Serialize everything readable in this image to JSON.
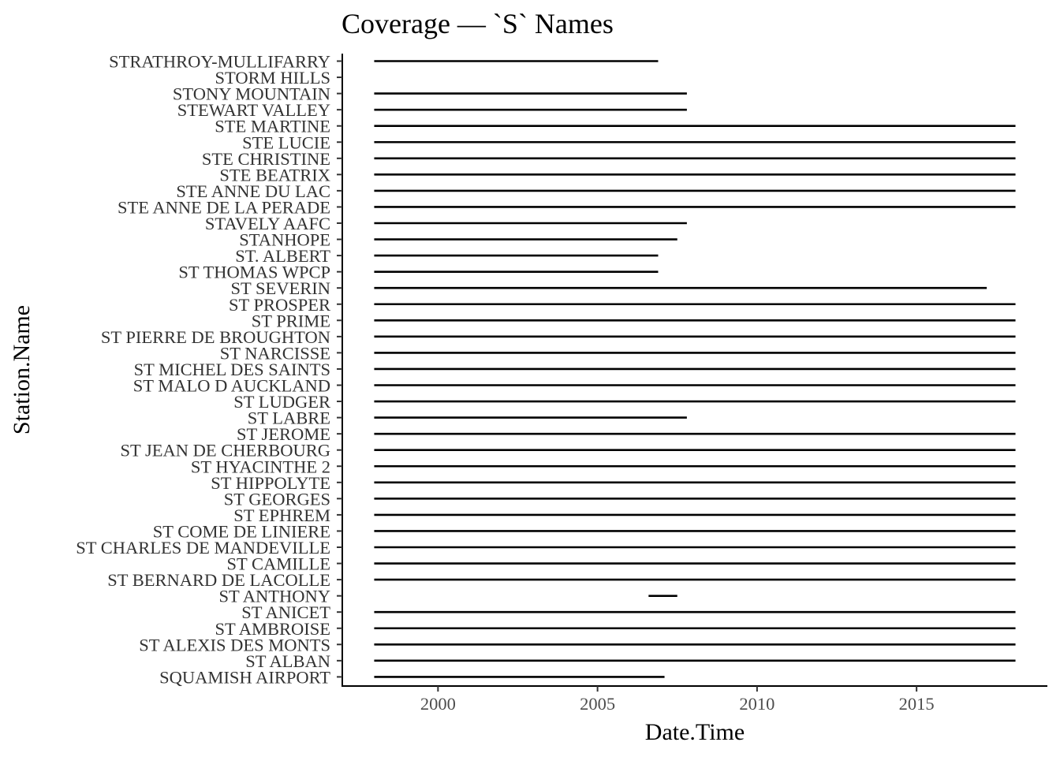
{
  "chart_data": {
    "type": "range",
    "title": "Coverage — `S` Names",
    "xlabel": "Date.Time",
    "ylabel": "Station.Name",
    "xlim": [
      1997.0,
      2019.1
    ],
    "x_ticks": [
      2000,
      2005,
      2010,
      2015
    ],
    "grid": false,
    "legend": "none",
    "line_color": "#000000",
    "stations": [
      {
        "name": "STRATHROY-MULLIFARRY",
        "start": 1998.0,
        "end": 2006.9
      },
      {
        "name": "STORM HILLS",
        "start": null,
        "end": null
      },
      {
        "name": "STONY MOUNTAIN",
        "start": 1998.0,
        "end": 2007.8
      },
      {
        "name": "STEWART VALLEY",
        "start": 1998.0,
        "end": 2007.8
      },
      {
        "name": "STE MARTINE",
        "start": 1998.0,
        "end": 2018.1
      },
      {
        "name": "STE LUCIE",
        "start": 1998.0,
        "end": 2018.1
      },
      {
        "name": "STE CHRISTINE",
        "start": 1998.0,
        "end": 2018.1
      },
      {
        "name": "STE BEATRIX",
        "start": 1998.0,
        "end": 2018.1
      },
      {
        "name": "STE ANNE DU LAC",
        "start": 1998.0,
        "end": 2018.1
      },
      {
        "name": "STE ANNE DE LA PERADE",
        "start": 1998.0,
        "end": 2018.1
      },
      {
        "name": "STAVELY AAFC",
        "start": 1998.0,
        "end": 2007.8
      },
      {
        "name": "STANHOPE",
        "start": 1998.0,
        "end": 2007.5
      },
      {
        "name": "ST. ALBERT",
        "start": 1998.0,
        "end": 2006.9
      },
      {
        "name": "ST THOMAS WPCP",
        "start": 1998.0,
        "end": 2006.9
      },
      {
        "name": "ST SEVERIN",
        "start": 1998.0,
        "end": 2017.2
      },
      {
        "name": "ST PROSPER",
        "start": 1998.0,
        "end": 2018.1
      },
      {
        "name": "ST PRIME",
        "start": 1998.0,
        "end": 2018.1
      },
      {
        "name": "ST PIERRE DE BROUGHTON",
        "start": 1998.0,
        "end": 2018.1
      },
      {
        "name": "ST NARCISSE",
        "start": 1998.0,
        "end": 2018.1
      },
      {
        "name": "ST MICHEL DES SAINTS",
        "start": 1998.0,
        "end": 2018.1
      },
      {
        "name": "ST MALO D AUCKLAND",
        "start": 1998.0,
        "end": 2018.1
      },
      {
        "name": "ST LUDGER",
        "start": 1998.0,
        "end": 2018.1
      },
      {
        "name": "ST LABRE",
        "start": 1998.0,
        "end": 2007.8
      },
      {
        "name": "ST JEROME",
        "start": 1998.0,
        "end": 2018.1
      },
      {
        "name": "ST JEAN DE CHERBOURG",
        "start": 1998.0,
        "end": 2018.1
      },
      {
        "name": "ST HYACINTHE 2",
        "start": 1998.0,
        "end": 2018.1
      },
      {
        "name": "ST HIPPOLYTE",
        "start": 1998.0,
        "end": 2018.1
      },
      {
        "name": "ST GEORGES",
        "start": 1998.0,
        "end": 2018.1
      },
      {
        "name": "ST EPHREM",
        "start": 1998.0,
        "end": 2018.1
      },
      {
        "name": "ST COME DE LINIERE",
        "start": 1998.0,
        "end": 2018.1
      },
      {
        "name": "ST CHARLES DE MANDEVILLE",
        "start": 1998.0,
        "end": 2018.1
      },
      {
        "name": "ST CAMILLE",
        "start": 1998.0,
        "end": 2018.1
      },
      {
        "name": "ST BERNARD DE LACOLLE",
        "start": 1998.0,
        "end": 2018.1
      },
      {
        "name": "ST ANTHONY",
        "start": 2006.6,
        "end": 2007.5
      },
      {
        "name": "ST ANICET",
        "start": 1998.0,
        "end": 2018.1
      },
      {
        "name": "ST AMBROISE",
        "start": 1998.0,
        "end": 2018.1
      },
      {
        "name": "ST ALEXIS DES MONTS",
        "start": 1998.0,
        "end": 2018.1
      },
      {
        "name": "ST ALBAN",
        "start": 1998.0,
        "end": 2018.1
      },
      {
        "name": "SQUAMISH AIRPORT",
        "start": 1998.0,
        "end": 2007.1
      }
    ]
  }
}
